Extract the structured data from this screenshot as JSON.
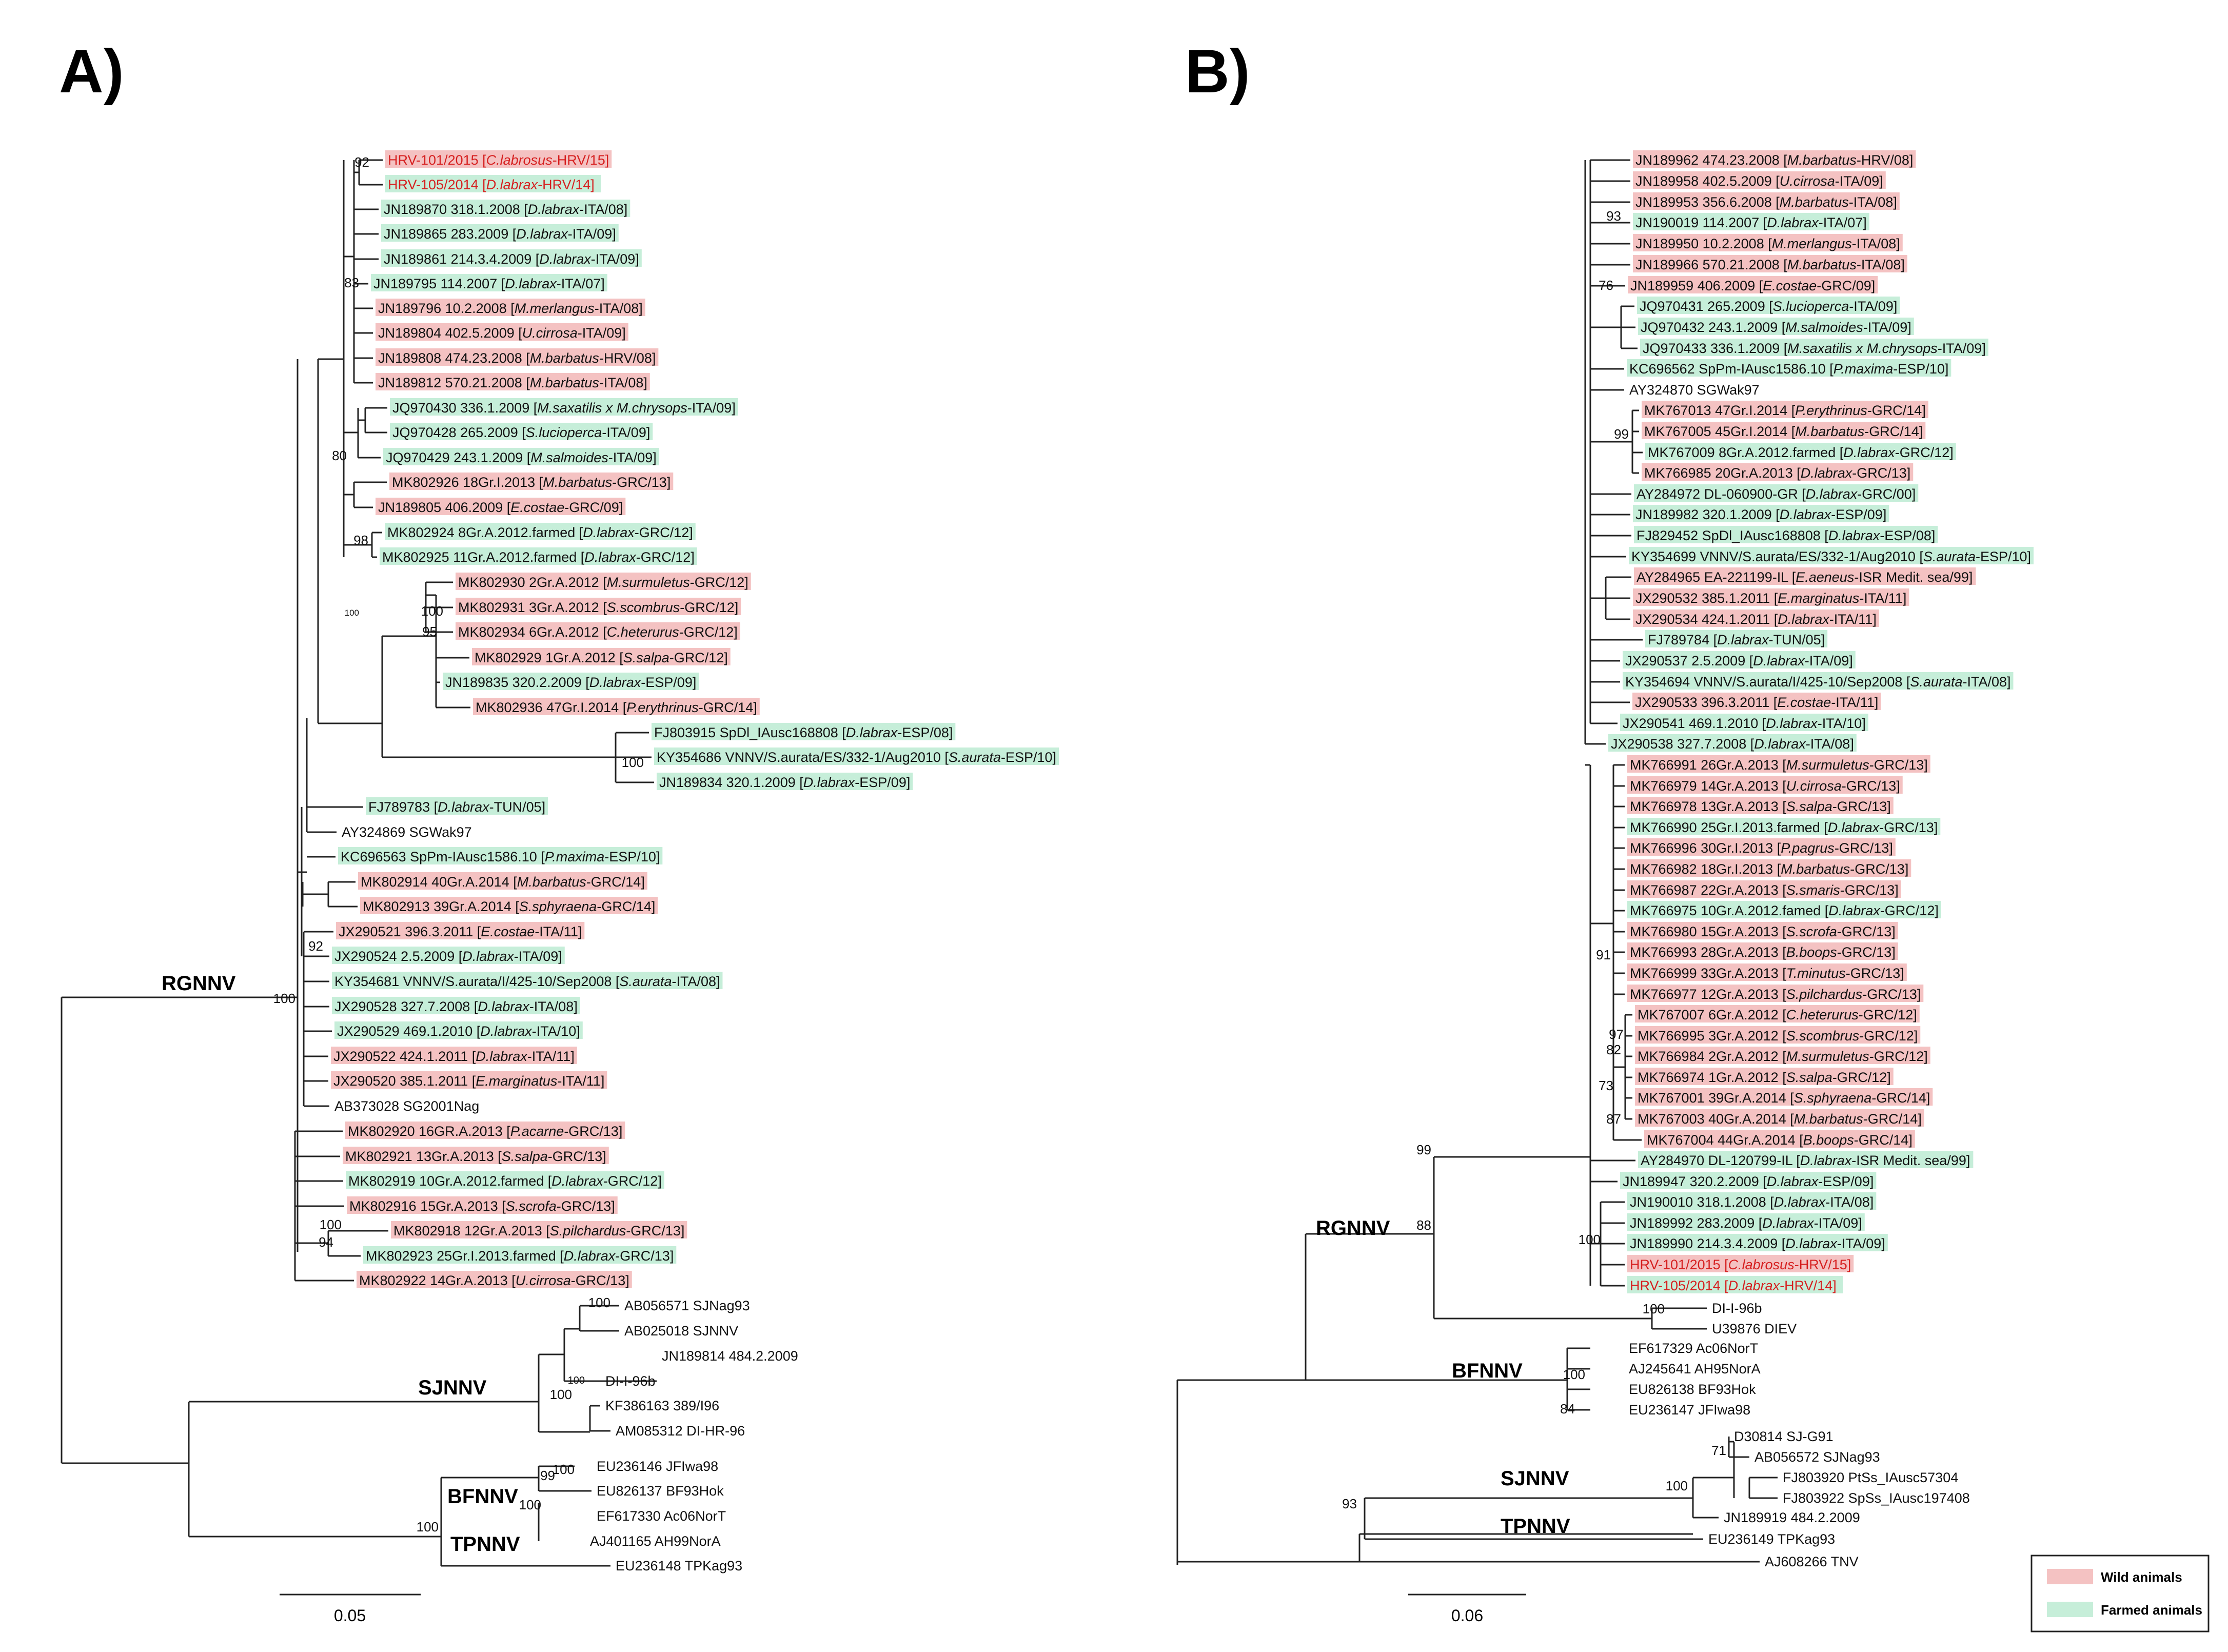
{
  "colors": {
    "wild": "#f4c2c2",
    "farmed": "#c6eed9",
    "highlight_text": "#d62020",
    "line": "#222222"
  },
  "panels": {
    "a": {
      "label": "A)",
      "clades": {
        "rgnnv": "RGNNV",
        "sjnnv": "SJNNV",
        "bfnnv": "BFNNV",
        "tpnnv": "TPNNV"
      },
      "scale": "0.05",
      "leaves": [
        {
          "pre": "HRV-101/2015 [",
          "sp": "C.labrosus",
          "post": "-HRV/15]",
          "hl": "wild",
          "red": true
        },
        {
          "pre": "HRV-105/2014  [",
          "sp": "D.labrax",
          "post": "-HRV/14]",
          "hl": "farmed",
          "red": true
        },
        {
          "pre": "JN189870 318.1.2008 [",
          "sp": "D.labrax",
          "post": "-ITA/08]",
          "hl": "farmed"
        },
        {
          "pre": "JN189865 283.2009 [",
          "sp": "D.labrax",
          "post": "-ITA/09]",
          "hl": "farmed"
        },
        {
          "pre": "JN189861 214.3.4.2009 [",
          "sp": "D.labrax",
          "post": "-ITA/09]",
          "hl": "farmed"
        },
        {
          "pre": "JN189795 114.2007 [",
          "sp": "D.labrax",
          "post": "-ITA/07]",
          "hl": "farmed"
        },
        {
          "pre": "JN189796 10.2.2008 [",
          "sp": "M.merlangus",
          "post": "-ITA/08]",
          "hl": "wild"
        },
        {
          "pre": "JN189804 402.5.2009 [",
          "sp": "U.cirrosa",
          "post": "-ITA/09]",
          "hl": "wild"
        },
        {
          "pre": "JN189808 474.23.2008 [",
          "sp": "M.barbatus",
          "post": "-HRV/08]",
          "hl": "wild"
        },
        {
          "pre": "JN189812 570.21.2008 [",
          "sp": "M.barbatus",
          "post": "-ITA/08]",
          "hl": "wild"
        },
        {
          "pre": "JQ970430 336.1.2009 [",
          "sp": "M.saxatilis x M.chrysops",
          "post": "-ITA/09]",
          "hl": "farmed"
        },
        {
          "pre": "JQ970428 265.2009 [",
          "sp": "S.lucioperca",
          "post": "-ITA/09]",
          "hl": "farmed"
        },
        {
          "pre": "JQ970429 243.1.2009 [",
          "sp": "M.salmoides",
          "post": "-ITA/09]",
          "hl": "farmed"
        },
        {
          "pre": "MK802926 18Gr.I.2013 [",
          "sp": "M.barbatus",
          "post": "-GRC/13]",
          "hl": "wild"
        },
        {
          "pre": "JN189805 406.2009 [",
          "sp": "E.costae",
          "post": "-GRC/09]",
          "hl": "wild"
        },
        {
          "pre": "MK802924 8Gr.A.2012.farmed [",
          "sp": "D.labrax",
          "post": "-GRC/12]",
          "hl": "farmed"
        },
        {
          "pre": "MK802925 11Gr.A.2012.farmed [",
          "sp": "D.labrax",
          "post": "-GRC/12]",
          "hl": "farmed"
        },
        {
          "pre": "MK802930 2Gr.A.2012 [",
          "sp": "M.surmuletus",
          "post": "-GRC/12]",
          "hl": "wild"
        },
        {
          "pre": "MK802931 3Gr.A.2012 [",
          "sp": "S.scombrus",
          "post": "-GRC/12]",
          "hl": "wild"
        },
        {
          "pre": "MK802934 6Gr.A.2012 [",
          "sp": "C.heterurus",
          "post": "-GRC/12]",
          "hl": "wild"
        },
        {
          "pre": "MK802929 1Gr.A.2012 [",
          "sp": "S.salpa",
          "post": "-GRC/12]",
          "hl": "wild"
        },
        {
          "pre": "JN189835 320.2.2009 [",
          "sp": "D.labrax",
          "post": "-ESP/09]",
          "hl": "farmed"
        },
        {
          "pre": "MK802936 47Gr.I.2014 [",
          "sp": "P.erythrinus",
          "post": "-GRC/14]",
          "hl": "wild"
        },
        {
          "pre": "FJ803915 SpDl_IAusc168808 [",
          "sp": "D.labrax",
          "post": "-ESP/08]",
          "hl": "farmed"
        },
        {
          "pre": "KY354686 VNNV/S.aurata/ES/332-1/Aug2010 [",
          "sp": "S.aurata",
          "post": "-ESP/10]",
          "hl": "farmed"
        },
        {
          "pre": "JN189834 320.1.2009 [",
          "sp": "D.labrax",
          "post": "-ESP/09]",
          "hl": "farmed"
        },
        {
          "pre": "FJ789783 [",
          "sp": "D.labrax",
          "post": "-TUN/05]",
          "hl": "farmed"
        },
        {
          "pre": "AY324869 SGWak97",
          "sp": "",
          "post": "",
          "hl": "none"
        },
        {
          "pre": "KC696563 SpPm-IAusc1586.10 [",
          "sp": "P.maxima",
          "post": "-ESP/10]",
          "hl": "farmed"
        },
        {
          "pre": "MK802914 40Gr.A.2014 [",
          "sp": "M.barbatus",
          "post": "-GRC/14]",
          "hl": "wild"
        },
        {
          "pre": "MK802913 39Gr.A.2014 [",
          "sp": "S.sphyraena",
          "post": "-GRC/14]",
          "hl": "wild"
        },
        {
          "pre": "JX290521 396.3.2011 [",
          "sp": "E.costae",
          "post": "-ITA/11]",
          "hl": "wild"
        },
        {
          "pre": "JX290524 2.5.2009 [",
          "sp": "D.labrax",
          "post": "-ITA/09]",
          "hl": "farmed"
        },
        {
          "pre": "KY354681 VNNV/S.aurata/I/425-10/Sep2008 [",
          "sp": "S.aurata",
          "post": "-ITA/08]",
          "hl": "farmed"
        },
        {
          "pre": "JX290528 327.7.2008 [",
          "sp": "D.labrax",
          "post": "-ITA/08]",
          "hl": "farmed"
        },
        {
          "pre": "JX290529 469.1.2010 [",
          "sp": "D.labrax",
          "post": "-ITA/10]",
          "hl": "farmed"
        },
        {
          "pre": "JX290522 424.1.2011 [",
          "sp": "D.labrax",
          "post": "-ITA/11]",
          "hl": "wild"
        },
        {
          "pre": "JX290520 385.1.2011 [",
          "sp": "E.marginatus",
          "post": "-ITA/11]",
          "hl": "wild"
        },
        {
          "pre": "AB373028 SG2001Nag",
          "sp": "",
          "post": "",
          "hl": "none"
        },
        {
          "pre": "MK802920 16GR.A.2013 [",
          "sp": "P.acarne",
          "post": "-GRC/13]",
          "hl": "wild"
        },
        {
          "pre": "MK802921 13Gr.A.2013 [",
          "sp": "S.salpa",
          "post": "-GRC/13]",
          "hl": "wild"
        },
        {
          "pre": "MK802919 10Gr.A.2012.farmed [",
          "sp": "D.labrax",
          "post": "-GRC/12]",
          "hl": "farmed"
        },
        {
          "pre": "MK802916 15Gr.A.2013 [",
          "sp": "S.scrofa",
          "post": "-GRC/13]",
          "hl": "wild"
        },
        {
          "pre": "MK802918 12Gr.A.2013 [",
          "sp": "S.pilchardus",
          "post": "-GRC/13]",
          "hl": "wild"
        },
        {
          "pre": "MK802923 25Gr.I.2013.farmed [",
          "sp": "D.labrax",
          "post": "-GRC/13]",
          "hl": "farmed"
        },
        {
          "pre": "MK802922 14Gr.A.2013 [",
          "sp": "U.cirrosa",
          "post": "-GRC/13]",
          "hl": "wild"
        },
        {
          "pre": "AB056571 SJNag93",
          "sp": "",
          "post": "",
          "hl": "none"
        },
        {
          "pre": "AB025018 SJNNV",
          "sp": "",
          "post": "",
          "hl": "none"
        },
        {
          "pre": "JN189814 484.2.2009",
          "sp": "",
          "post": "",
          "hl": "none"
        },
        {
          "pre": "DI-I-96b",
          "sp": "",
          "post": "",
          "hl": "none"
        },
        {
          "pre": "KF386163 389/I96",
          "sp": "",
          "post": "",
          "hl": "none"
        },
        {
          "pre": "AM085312 DI-HR-96",
          "sp": "",
          "post": "",
          "hl": "none"
        },
        {
          "pre": "EU236146 JFIwa98",
          "sp": "",
          "post": "",
          "hl": "none"
        },
        {
          "pre": "EU826137 BF93Hok",
          "sp": "",
          "post": "",
          "hl": "none"
        },
        {
          "pre": "EF617330 Ac06NorT",
          "sp": "",
          "post": "",
          "hl": "none"
        },
        {
          "pre": "AJ401165 AH99NorA",
          "sp": "",
          "post": "",
          "hl": "none"
        },
        {
          "pre": "EU236148 TPKag93",
          "sp": "",
          "post": "",
          "hl": "none"
        }
      ],
      "supports": [
        "92",
        "83",
        "100",
        "80",
        "98",
        "100",
        "95",
        "100",
        "100",
        "92",
        "100",
        "94",
        "100",
        "100",
        "100",
        "100",
        "99",
        "100",
        "100"
      ]
    },
    "b": {
      "label": "B)",
      "clades": {
        "rgnnv": "RGNNV",
        "bfnnv": "BFNNV",
        "sjnnv": "SJNNV",
        "tpnnv": "TPNNV"
      },
      "scale": "0.06",
      "leaves": [
        {
          "pre": "JN189962 474.23.2008 [",
          "sp": "M.barbatus",
          "post": "-HRV/08]",
          "hl": "wild"
        },
        {
          "pre": "JN189958 402.5.2009 [",
          "sp": "U.cirrosa",
          "post": "-ITA/09]",
          "hl": "wild"
        },
        {
          "pre": "JN189953 356.6.2008 [",
          "sp": "M.barbatus",
          "post": "-ITA/08]",
          "hl": "wild"
        },
        {
          "pre": "JN190019 114.2007 [",
          "sp": "D.labrax",
          "post": "-ITA/07]",
          "hl": "farmed"
        },
        {
          "pre": "JN189950 10.2.2008 [",
          "sp": "M.merlangus",
          "post": "-ITA/08]",
          "hl": "wild"
        },
        {
          "pre": "JN189966 570.21.2008 [",
          "sp": "M.barbatus",
          "post": "-ITA/08]",
          "hl": "wild"
        },
        {
          "pre": "JN189959 406.2009 [",
          "sp": "E.costae",
          "post": "-GRC/09]",
          "hl": "wild"
        },
        {
          "pre": "JQ970431 265.2009 [",
          "sp": "S.lucioperca",
          "post": "-ITA/09]",
          "hl": "farmed"
        },
        {
          "pre": "JQ970432 243.1.2009 [",
          "sp": "M.salmoides",
          "post": "-ITA/09]",
          "hl": "farmed"
        },
        {
          "pre": "JQ970433 336.1.2009 [",
          "sp": "M.saxatilis x M.chrysops",
          "post": "-ITA/09]",
          "hl": "farmed"
        },
        {
          "pre": "KC696562 SpPm-IAusc1586.10 [",
          "sp": "P.maxima",
          "post": "-ESP/10]",
          "hl": "farmed"
        },
        {
          "pre": "AY324870 SGWak97",
          "sp": "",
          "post": "",
          "hl": "none"
        },
        {
          "pre": "MK767013 47Gr.I.2014 [",
          "sp": "P.erythrinus",
          "post": "-GRC/14]",
          "hl": "wild"
        },
        {
          "pre": "MK767005 45Gr.I.2014 [",
          "sp": "M.barbatus",
          "post": "-GRC/14]",
          "hl": "wild"
        },
        {
          "pre": "MK767009 8Gr.A.2012.farmed [",
          "sp": "D.labrax",
          "post": "-GRC/12]",
          "hl": "farmed"
        },
        {
          "pre": "MK766985 20Gr.A.2013 [",
          "sp": "D.labrax",
          "post": "-GRC/13]",
          "hl": "wild"
        },
        {
          "pre": "AY284972 DL-060900-GR [",
          "sp": "D.labrax",
          "post": "-GRC/00]",
          "hl": "farmed"
        },
        {
          "pre": "JN189982 320.1.2009 [",
          "sp": "D.labrax",
          "post": "-ESP/09]",
          "hl": "farmed"
        },
        {
          "pre": "FJ829452 SpDl_IAusc168808 [",
          "sp": "D.labrax",
          "post": "-ESP/08]",
          "hl": "farmed"
        },
        {
          "pre": "KY354699 VNNV/S.aurata/ES/332-1/Aug2010 [",
          "sp": "S.aurata",
          "post": "-ESP/10]",
          "hl": "farmed"
        },
        {
          "pre": "AY284965 EA-221199-IL [",
          "sp": "E.aeneus",
          "post": "-ISR Medit. sea/99]",
          "hl": "wild"
        },
        {
          "pre": "JX290532 385.1.2011 [",
          "sp": "E.marginatus",
          "post": "-ITA/11]",
          "hl": "wild"
        },
        {
          "pre": "JX290534 424.1.2011 [",
          "sp": "D.labrax",
          "post": "-ITA/11]",
          "hl": "wild"
        },
        {
          "pre": "FJ789784 [",
          "sp": "D.labrax",
          "post": "-TUN/05]",
          "hl": "farmed"
        },
        {
          "pre": "JX290537 2.5.2009 [",
          "sp": "D.labrax",
          "post": "-ITA/09]",
          "hl": "farmed"
        },
        {
          "pre": "KY354694 VNNV/S.aurata/I/425-10/Sep2008 [",
          "sp": "S.aurata",
          "post": "-ITA/08]",
          "hl": "farmed"
        },
        {
          "pre": "JX290533 396.3.2011 [",
          "sp": "E.costae",
          "post": "-ITA/11]",
          "hl": "wild"
        },
        {
          "pre": "JX290541 469.1.2010 [",
          "sp": "D.labrax",
          "post": "-ITA/10]",
          "hl": "farmed"
        },
        {
          "pre": "JX290538 327.7.2008 [",
          "sp": "D.labrax",
          "post": "-ITA/08]",
          "hl": "farmed"
        },
        {
          "pre": "MK766991 26Gr.A.2013 [",
          "sp": "M.surmuletus",
          "post": "-GRC/13]",
          "hl": "wild"
        },
        {
          "pre": "MK766979 14Gr.A.2013 [",
          "sp": "U.cirrosa",
          "post": "-GRC/13]",
          "hl": "wild"
        },
        {
          "pre": "MK766978 13Gr.A.2013 [",
          "sp": "S.salpa",
          "post": "-GRC/13]",
          "hl": "wild"
        },
        {
          "pre": "MK766990 25Gr.I.2013.farmed [",
          "sp": "D.labrax",
          "post": "-GRC/13]",
          "hl": "farmed"
        },
        {
          "pre": "MK766996 30Gr.I.2013 [",
          "sp": "P.pagrus",
          "post": "-GRC/13]",
          "hl": "wild"
        },
        {
          "pre": "MK766982 18Gr.I.2013 [",
          "sp": "M.barbatus",
          "post": "-GRC/13]",
          "hl": "wild"
        },
        {
          "pre": "MK766987 22Gr.A.2013 [",
          "sp": "S.smaris",
          "post": "-GRC/13]",
          "hl": "wild"
        },
        {
          "pre": "MK766975 10Gr.A.2012.famed [",
          "sp": "D.labrax",
          "post": "-GRC/12]",
          "hl": "farmed"
        },
        {
          "pre": "MK766980 15Gr.A.2013 [",
          "sp": "S.scrofa",
          "post": "-GRC/13]",
          "hl": "wild"
        },
        {
          "pre": "MK766993 28Gr.A.2013 [",
          "sp": "B.boops",
          "post": "-GRC/13]",
          "hl": "wild"
        },
        {
          "pre": "MK766999 33Gr.A.2013 [",
          "sp": "T.minutus",
          "post": "-GRC/13]",
          "hl": "wild"
        },
        {
          "pre": "MK766977 12Gr.A.2013 [",
          "sp": "S.pilchardus",
          "post": "-GRC/13]",
          "hl": "wild"
        },
        {
          "pre": "MK767007 6Gr.A.2012 [",
          "sp": "C.heterurus",
          "post": "-GRC/12]",
          "hl": "wild"
        },
        {
          "pre": "MK766995 3Gr.A.2012 [",
          "sp": "S.scombrus",
          "post": "-GRC/12]",
          "hl": "wild"
        },
        {
          "pre": "MK766984 2Gr.A.2012 [",
          "sp": "M.surmuletus",
          "post": "-GRC/12]",
          "hl": "wild"
        },
        {
          "pre": "MK766974 1Gr.A.2012 [",
          "sp": "S.salpa",
          "post": "-GRC/12]",
          "hl": "wild"
        },
        {
          "pre": "MK767001 39Gr.A.2014 [",
          "sp": "S.sphyraena",
          "post": "-GRC/14]",
          "hl": "wild"
        },
        {
          "pre": "MK767003 40Gr.A.2014 [",
          "sp": "M.barbatus",
          "post": "-GRC/14]",
          "hl": "wild"
        },
        {
          "pre": "MK767004 44Gr.A.2014 [",
          "sp": "B.boops",
          "post": "-GRC/14]",
          "hl": "wild"
        },
        {
          "pre": "AY284970 DL-120799-IL [",
          "sp": "D.labrax",
          "post": "-ISR Medit. sea/99]",
          "hl": "farmed"
        },
        {
          "pre": "JN189947 320.2.2009 [",
          "sp": "D.labrax",
          "post": "-ESP/09]",
          "hl": "farmed"
        },
        {
          "pre": "JN190010 318.1.2008 [",
          "sp": "D.labrax",
          "post": "-ITA/08]",
          "hl": "farmed"
        },
        {
          "pre": "JN189992 283.2009 [",
          "sp": "D.labrax",
          "post": "-ITA/09]",
          "hl": "farmed"
        },
        {
          "pre": "JN189990 214.3.4.2009 [",
          "sp": "D.labrax",
          "post": "-ITA/09]",
          "hl": "farmed"
        },
        {
          "pre": "HRV-101/2015 [",
          "sp": "C.labrosus",
          "post": "-HRV/15]",
          "hl": "wild",
          "red": true
        },
        {
          "pre": "HRV-105/2014  [",
          "sp": "D.labrax",
          "post": "-HRV/14]",
          "hl": "farmed",
          "red": true
        },
        {
          "pre": "DI-I-96b",
          "sp": "",
          "post": "",
          "hl": "none"
        },
        {
          "pre": "U39876 DIEV",
          "sp": "",
          "post": "",
          "hl": "none"
        },
        {
          "pre": "EF617329 Ac06NorT",
          "sp": "",
          "post": "",
          "hl": "none"
        },
        {
          "pre": "AJ245641 AH95NorA",
          "sp": "",
          "post": "",
          "hl": "none"
        },
        {
          "pre": "EU826138 BF93Hok",
          "sp": "",
          "post": "",
          "hl": "none"
        },
        {
          "pre": "EU236147 JFIwa98",
          "sp": "",
          "post": "",
          "hl": "none"
        },
        {
          "pre": "D30814 SJ-G91",
          "sp": "",
          "post": "",
          "hl": "none"
        },
        {
          "pre": "AB056572 SJNag93",
          "sp": "",
          "post": "",
          "hl": "none"
        },
        {
          "pre": "FJ803920 PtSs_IAusc57304",
          "sp": "",
          "post": "",
          "hl": "none"
        },
        {
          "pre": "FJ803922 SpSs_IAusc197408",
          "sp": "",
          "post": "",
          "hl": "none"
        },
        {
          "pre": "JN189919 484.2.2009",
          "sp": "",
          "post": "",
          "hl": "none"
        },
        {
          "pre": "EU236149 TPKag93",
          "sp": "",
          "post": "",
          "hl": "none"
        },
        {
          "pre": "AJ608266 TNV",
          "sp": "",
          "post": "",
          "hl": "none"
        }
      ],
      "supports": [
        "93",
        "76",
        "99",
        "91",
        "97",
        "82",
        "73",
        "87",
        "99",
        "100",
        "88",
        "100",
        "100",
        "84",
        "71",
        "100",
        "93"
      ]
    }
  },
  "legend": {
    "wild_label": "Wild animals",
    "farmed_label": "Farmed animals"
  }
}
